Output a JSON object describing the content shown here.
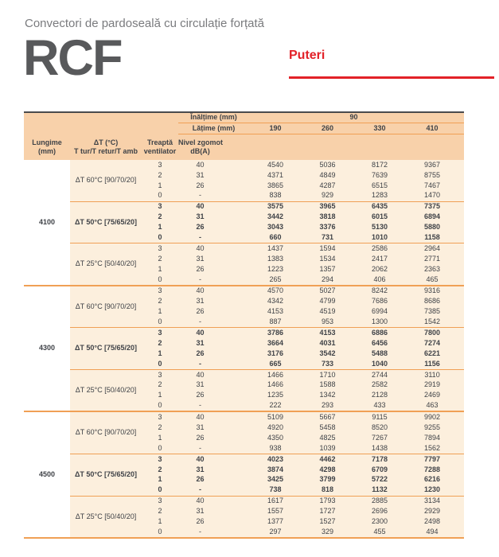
{
  "page": {
    "subtitle": "Convectori de pardoseală cu circulație forțată",
    "model": "RCF",
    "section_title": "Puteri"
  },
  "colors": {
    "accent_red": "#e22128",
    "header_peach": "#f8d1aa",
    "body_cream": "#fcefdd",
    "line_orange": "#f0a055",
    "model_gray": "#58595b",
    "table_top_border": "#4a4b4d",
    "text": "#3f4247"
  },
  "table": {
    "header": {
      "height_label": "Înălțime (mm)",
      "height_value": "90",
      "width_label": "Lățime (mm)",
      "width_values": [
        "190",
        "260",
        "330",
        "410"
      ]
    },
    "columns": {
      "lungime": [
        "Lungime",
        "(mm)"
      ],
      "dt": [
        "ΔT (°C)",
        "T tur/T retur/T amb"
      ],
      "treapta": [
        "Treaptă",
        "ventilator"
      ],
      "zgomot": [
        "Nivel zgomot",
        "dB(A)"
      ]
    },
    "groups": [
      {
        "length": "4100",
        "blocks": [
          {
            "dt": "ΔT 60°C [90/70/20]",
            "bold": false,
            "rows": [
              {
                "fan": "3",
                "noise": "40",
                "values": [
                  "4540",
                  "5036",
                  "8172",
                  "9367"
                ]
              },
              {
                "fan": "2",
                "noise": "31",
                "values": [
                  "4371",
                  "4849",
                  "7639",
                  "8755"
                ]
              },
              {
                "fan": "1",
                "noise": "26",
                "values": [
                  "3865",
                  "4287",
                  "6515",
                  "7467"
                ]
              },
              {
                "fan": "0",
                "noise": "-",
                "values": [
                  "838",
                  "929",
                  "1283",
                  "1470"
                ]
              }
            ]
          },
          {
            "dt": "ΔT 50°C [75/65/20]",
            "bold": true,
            "rows": [
              {
                "fan": "3",
                "noise": "40",
                "values": [
                  "3575",
                  "3965",
                  "6435",
                  "7375"
                ]
              },
              {
                "fan": "2",
                "noise": "31",
                "values": [
                  "3442",
                  "3818",
                  "6015",
                  "6894"
                ]
              },
              {
                "fan": "1",
                "noise": "26",
                "values": [
                  "3043",
                  "3376",
                  "5130",
                  "5880"
                ]
              },
              {
                "fan": "0",
                "noise": "-",
                "values": [
                  "660",
                  "731",
                  "1010",
                  "1158"
                ]
              }
            ]
          },
          {
            "dt": "ΔT 25°C [50/40/20]",
            "bold": false,
            "rows": [
              {
                "fan": "3",
                "noise": "40",
                "values": [
                  "1437",
                  "1594",
                  "2586",
                  "2964"
                ]
              },
              {
                "fan": "2",
                "noise": "31",
                "values": [
                  "1383",
                  "1534",
                  "2417",
                  "2771"
                ]
              },
              {
                "fan": "1",
                "noise": "26",
                "values": [
                  "1223",
                  "1357",
                  "2062",
                  "2363"
                ]
              },
              {
                "fan": "0",
                "noise": "-",
                "values": [
                  "265",
                  "294",
                  "406",
                  "465"
                ]
              }
            ]
          }
        ]
      },
      {
        "length": "4300",
        "blocks": [
          {
            "dt": "ΔT 60°C [90/70/20]",
            "bold": false,
            "rows": [
              {
                "fan": "3",
                "noise": "40",
                "values": [
                  "4570",
                  "5027",
                  "8242",
                  "9316"
                ]
              },
              {
                "fan": "2",
                "noise": "31",
                "values": [
                  "4342",
                  "4799",
                  "7686",
                  "8686"
                ]
              },
              {
                "fan": "1",
                "noise": "26",
                "values": [
                  "4153",
                  "4519",
                  "6994",
                  "7385"
                ]
              },
              {
                "fan": "0",
                "noise": "-",
                "values": [
                  "887",
                  "953",
                  "1300",
                  "1542"
                ]
              }
            ]
          },
          {
            "dt": "ΔT 50°C [75/65/20]",
            "bold": true,
            "rows": [
              {
                "fan": "3",
                "noise": "40",
                "values": [
                  "3786",
                  "4153",
                  "6886",
                  "7800"
                ]
              },
              {
                "fan": "2",
                "noise": "31",
                "values": [
                  "3664",
                  "4031",
                  "6456",
                  "7274"
                ]
              },
              {
                "fan": "1",
                "noise": "26",
                "values": [
                  "3176",
                  "3542",
                  "5488",
                  "6221"
                ]
              },
              {
                "fan": "0",
                "noise": "-",
                "values": [
                  "665",
                  "733",
                  "1040",
                  "1156"
                ]
              }
            ]
          },
          {
            "dt": "ΔT 25°C [50/40/20]",
            "bold": false,
            "rows": [
              {
                "fan": "3",
                "noise": "40",
                "values": [
                  "1466",
                  "1710",
                  "2744",
                  "3110"
                ]
              },
              {
                "fan": "2",
                "noise": "31",
                "values": [
                  "1466",
                  "1588",
                  "2582",
                  "2919"
                ]
              },
              {
                "fan": "1",
                "noise": "26",
                "values": [
                  "1235",
                  "1342",
                  "2128",
                  "2469"
                ]
              },
              {
                "fan": "0",
                "noise": "-",
                "values": [
                  "222",
                  "293",
                  "433",
                  "463"
                ]
              }
            ]
          }
        ]
      },
      {
        "length": "4500",
        "blocks": [
          {
            "dt": "ΔT 60°C [90/70/20]",
            "bold": false,
            "rows": [
              {
                "fan": "3",
                "noise": "40",
                "values": [
                  "5109",
                  "5667",
                  "9115",
                  "9902"
                ]
              },
              {
                "fan": "2",
                "noise": "31",
                "values": [
                  "4920",
                  "5458",
                  "8520",
                  "9255"
                ]
              },
              {
                "fan": "1",
                "noise": "26",
                "values": [
                  "4350",
                  "4825",
                  "7267",
                  "7894"
                ]
              },
              {
                "fan": "0",
                "noise": "-",
                "values": [
                  "938",
                  "1039",
                  "1438",
                  "1562"
                ]
              }
            ]
          },
          {
            "dt": "ΔT 50°C [75/65/20]",
            "bold": true,
            "rows": [
              {
                "fan": "3",
                "noise": "40",
                "values": [
                  "4023",
                  "4462",
                  "7178",
                  "7797"
                ]
              },
              {
                "fan": "2",
                "noise": "31",
                "values": [
                  "3874",
                  "4298",
                  "6709",
                  "7288"
                ]
              },
              {
                "fan": "1",
                "noise": "26",
                "values": [
                  "3425",
                  "3799",
                  "5722",
                  "6216"
                ]
              },
              {
                "fan": "0",
                "noise": "-",
                "values": [
                  "738",
                  "818",
                  "1132",
                  "1230"
                ]
              }
            ]
          },
          {
            "dt": "ΔT 25°C [50/40/20]",
            "bold": false,
            "rows": [
              {
                "fan": "3",
                "noise": "40",
                "values": [
                  "1617",
                  "1793",
                  "2885",
                  "3134"
                ]
              },
              {
                "fan": "2",
                "noise": "31",
                "values": [
                  "1557",
                  "1727",
                  "2696",
                  "2929"
                ]
              },
              {
                "fan": "1",
                "noise": "26",
                "values": [
                  "1377",
                  "1527",
                  "2300",
                  "2498"
                ]
              },
              {
                "fan": "0",
                "noise": "-",
                "values": [
                  "297",
                  "329",
                  "455",
                  "494"
                ]
              }
            ]
          }
        ]
      }
    ]
  }
}
